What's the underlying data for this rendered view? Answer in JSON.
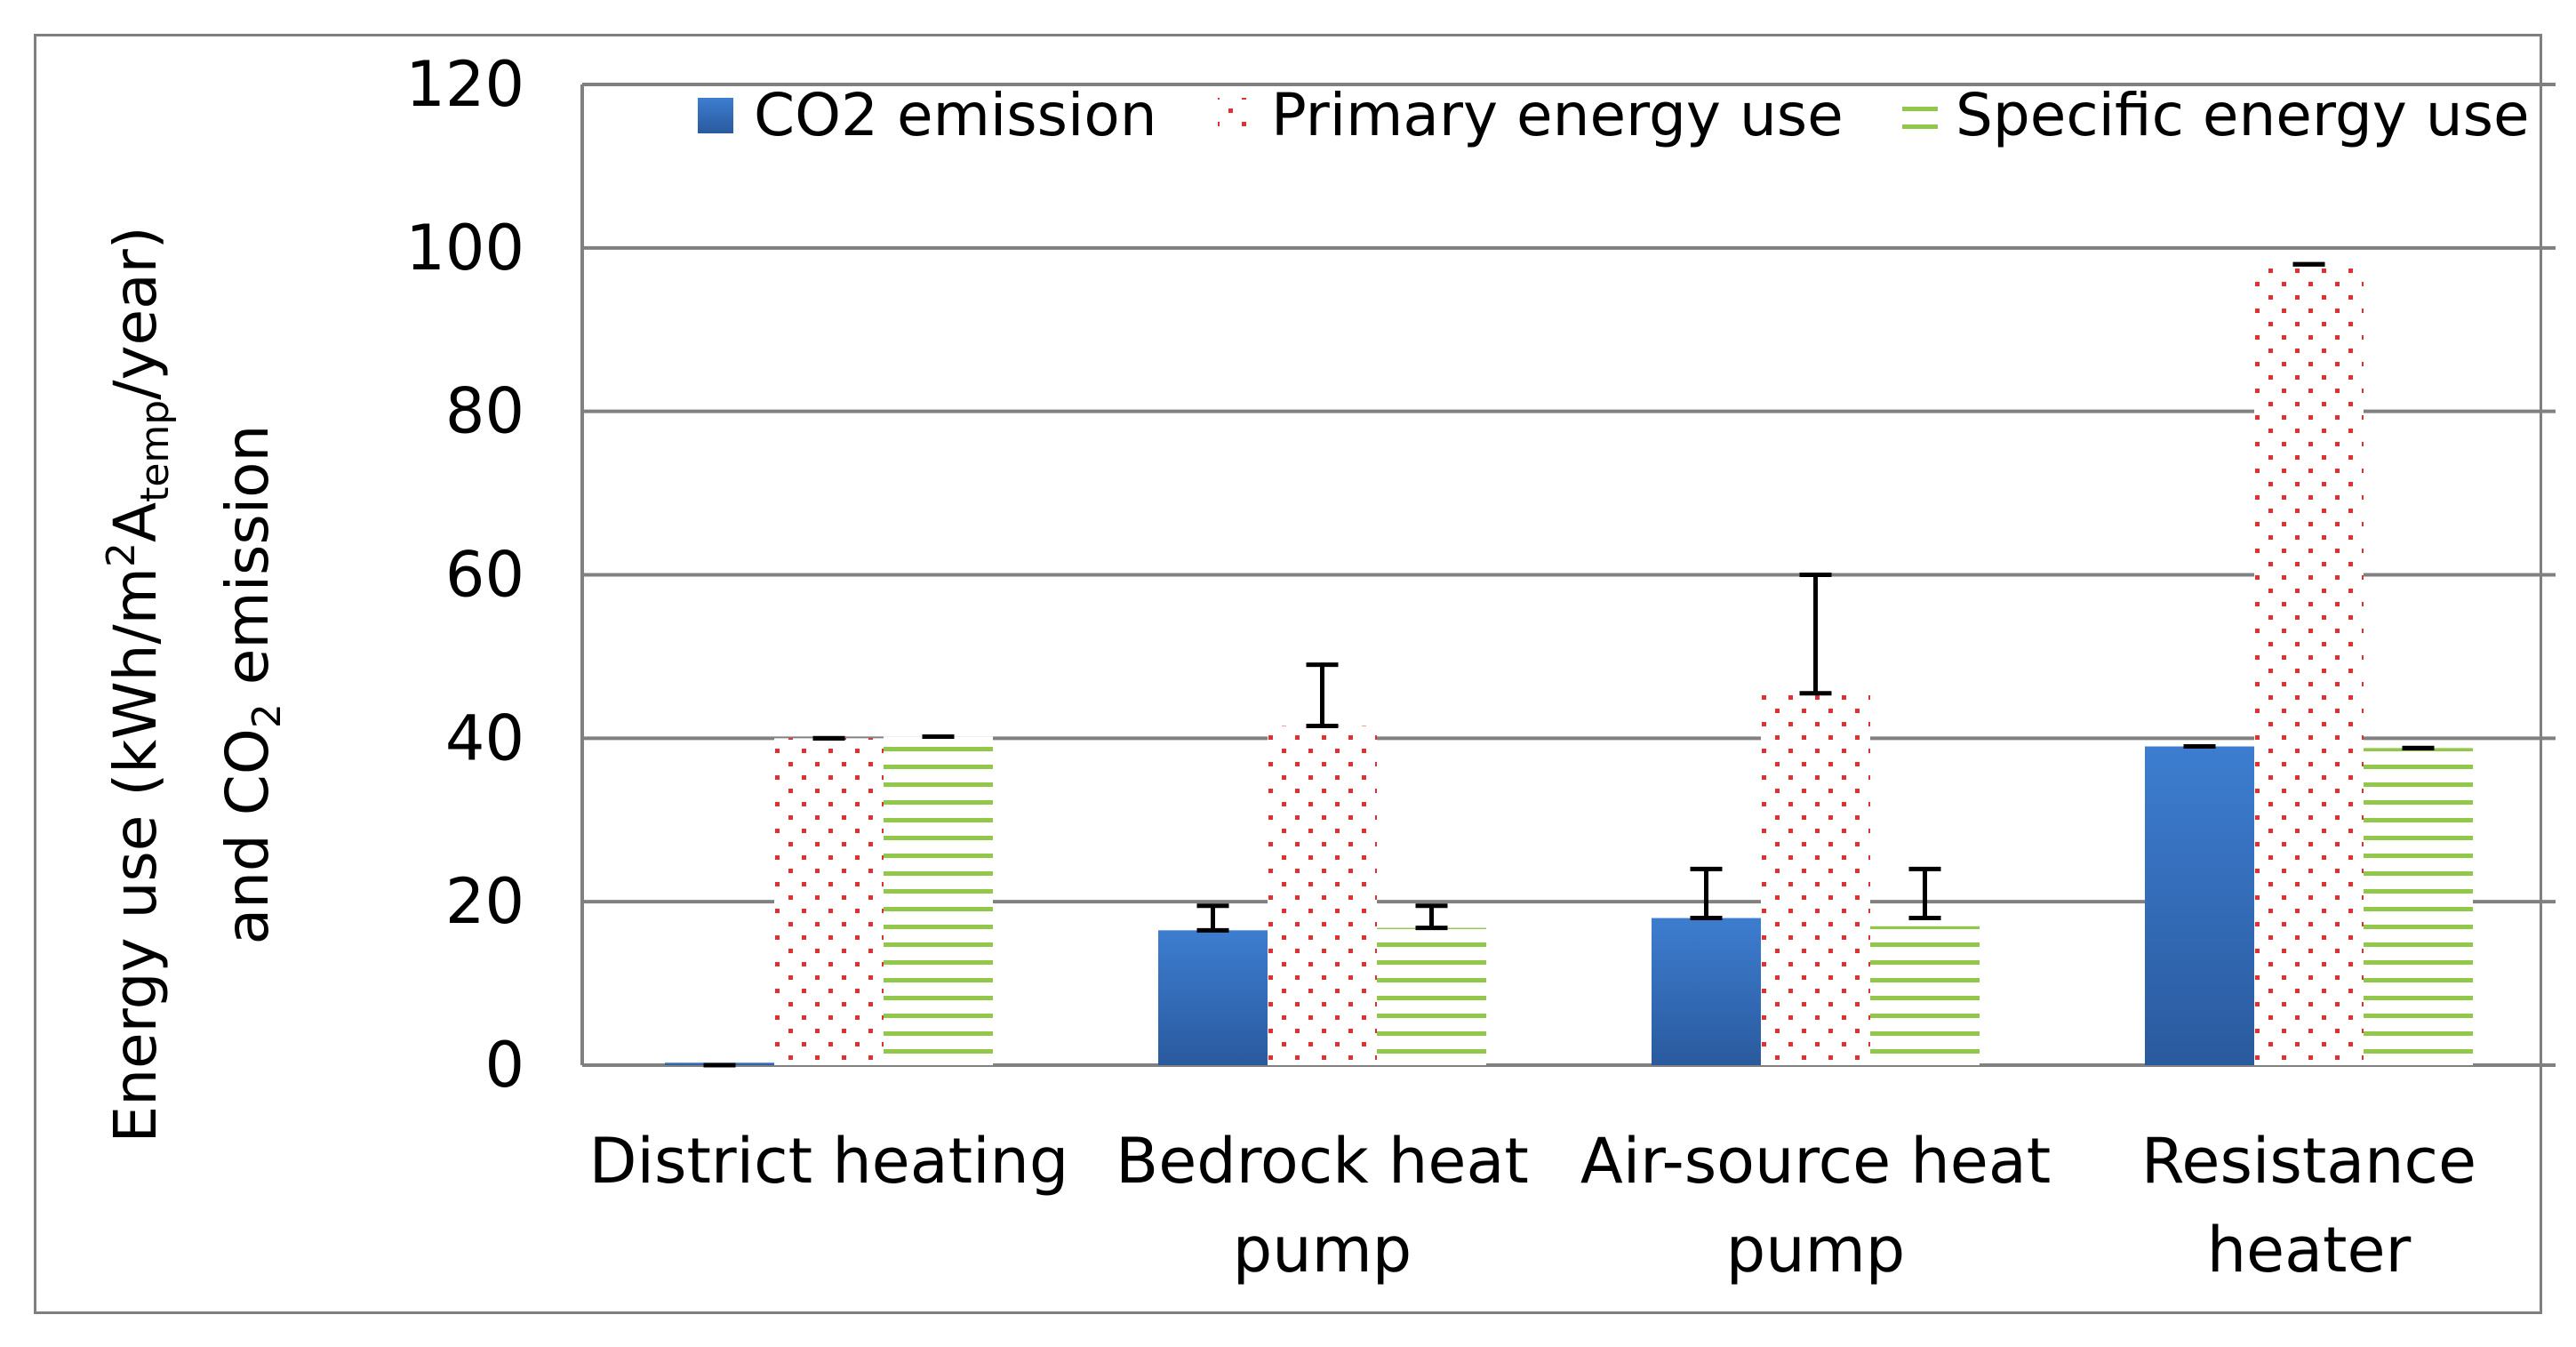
{
  "chart_data": {
    "type": "bar",
    "ylabel_line1_parts": [
      "Energy use (kWh/m",
      "2",
      "A",
      "temp",
      "/year)"
    ],
    "ylabel_line2_parts": [
      "and CO",
      "2",
      " emission"
    ],
    "ylim": [
      0,
      120
    ],
    "yticks": [
      0,
      20,
      40,
      60,
      80,
      100,
      120
    ],
    "grid": true,
    "legend_position": "top-right",
    "categories": [
      [
        "District heating"
      ],
      [
        "Bedrock heat",
        "pump"
      ],
      [
        "Air-source heat",
        "pump"
      ],
      [
        "Resistance",
        "heater"
      ]
    ],
    "series": [
      {
        "name": "CO2 emission",
        "color": "#3a78c8",
        "pattern": "solid",
        "values": [
          0.3,
          16.5,
          18,
          39
        ],
        "error_low": [
          0,
          16.5,
          18,
          39
        ],
        "error_high": [
          0,
          19.5,
          24,
          39
        ]
      },
      {
        "name": "Primary energy use",
        "color": "#e03030",
        "pattern": "dotted",
        "values": [
          40,
          41.5,
          45.5,
          98
        ],
        "error_low": [
          40,
          41.5,
          45.5,
          98
        ],
        "error_high": [
          40,
          49,
          60,
          98
        ]
      },
      {
        "name": "Specific energy use",
        "color": "#92c84a",
        "pattern": "horizontal-lines",
        "values": [
          40.2,
          16.8,
          17,
          38.8
        ],
        "error_low": [
          40.2,
          16.8,
          18,
          38.8
        ],
        "error_high": [
          40.2,
          19.5,
          24,
          38.8
        ]
      }
    ]
  }
}
